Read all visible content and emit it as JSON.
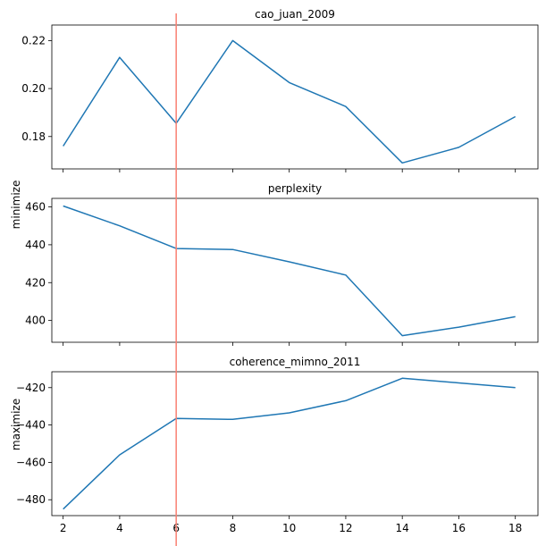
{
  "chart_data": {
    "type": "line",
    "x": [
      2,
      4,
      6,
      8,
      10,
      12,
      14,
      16,
      18
    ],
    "x_ticks": [
      "2",
      "4",
      "6",
      "8",
      "10",
      "12",
      "14",
      "16",
      "18"
    ],
    "xlim": [
      1.6,
      18.8
    ],
    "vertical_line_x": 6,
    "vertical_line_color": "#fa8072",
    "line_color": "#1f77b4",
    "side_labels": [
      {
        "text": "minimize",
        "panel": 1
      },
      {
        "text": "maximize",
        "panel": 2
      }
    ],
    "panels": [
      {
        "title": "cao_juan_2009",
        "values": [
          0.176,
          0.213,
          0.1855,
          0.22,
          0.2025,
          0.1925,
          0.169,
          0.1755,
          0.1883
        ],
        "ylim": [
          0.1665,
          0.2265
        ],
        "y_ticks": [
          0.18,
          0.2,
          0.22
        ],
        "y_tick_labels": [
          "0.18",
          "0.20",
          "0.22"
        ]
      },
      {
        "title": "perplexity",
        "values": [
          460.5,
          450.0,
          438.0,
          437.5,
          431.0,
          424.0,
          392.0,
          396.5,
          402.0
        ],
        "ylim": [
          388.5,
          464.5
        ],
        "y_ticks": [
          400,
          420,
          440,
          460
        ],
        "y_tick_labels": [
          "400",
          "420",
          "440",
          "460"
        ]
      },
      {
        "title": "coherence_mimno_2011",
        "values": [
          -485.0,
          -456.0,
          -436.5,
          -437.0,
          -433.5,
          -427.0,
          -415.0,
          -417.5,
          -420.0
        ],
        "ylim": [
          -488.5,
          -411.5
        ],
        "y_ticks": [
          -480,
          -460,
          -440,
          -420
        ],
        "y_tick_labels": [
          "−480",
          "−460",
          "−440",
          "−420"
        ]
      }
    ]
  }
}
